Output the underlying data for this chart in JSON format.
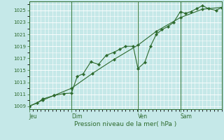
{
  "xlabel": "Pression niveau de la mer( hPa )",
  "bg_color": "#c5e8e8",
  "grid_color": "#ffffff",
  "line_color": "#2d6a2d",
  "marker_color": "#2d6a2d",
  "ylim": [
    1008.5,
    1026.5
  ],
  "yticks": [
    1009,
    1011,
    1013,
    1015,
    1017,
    1019,
    1021,
    1023,
    1025
  ],
  "day_labels": [
    "Jeu",
    "Dim",
    "Ven",
    "Sam"
  ],
  "day_positions": [
    0.0,
    0.22,
    0.565,
    0.785
  ],
  "vline_color": "#3a7a3a",
  "series1_x": [
    0.0,
    0.04,
    0.07,
    0.13,
    0.18,
    0.22,
    0.25,
    0.28,
    0.32,
    0.36,
    0.4,
    0.44,
    0.47,
    0.5,
    0.54,
    0.565,
    0.6,
    0.63,
    0.66,
    0.69,
    0.72,
    0.75,
    0.785,
    0.81,
    0.84,
    0.87,
    0.9,
    0.93,
    0.97,
    1.0
  ],
  "series1_y": [
    1009.0,
    1009.5,
    1010.2,
    1010.8,
    1011.1,
    1011.2,
    1014.0,
    1014.4,
    1016.4,
    1016.0,
    1017.5,
    1018.0,
    1018.5,
    1019.0,
    1019.0,
    1015.3,
    1016.3,
    1019.0,
    1021.0,
    1021.8,
    1022.3,
    1023.0,
    1024.8,
    1024.5,
    1024.8,
    1025.3,
    1025.8,
    1025.3,
    1025.0,
    1025.5
  ],
  "series2_x": [
    0.0,
    0.07,
    0.13,
    0.22,
    0.33,
    0.44,
    0.565,
    0.66,
    0.785,
    0.9,
    1.0
  ],
  "series2_y": [
    1009.0,
    1010.0,
    1010.8,
    1012.0,
    1014.5,
    1016.8,
    1019.2,
    1021.5,
    1023.8,
    1025.2,
    1025.5
  ]
}
